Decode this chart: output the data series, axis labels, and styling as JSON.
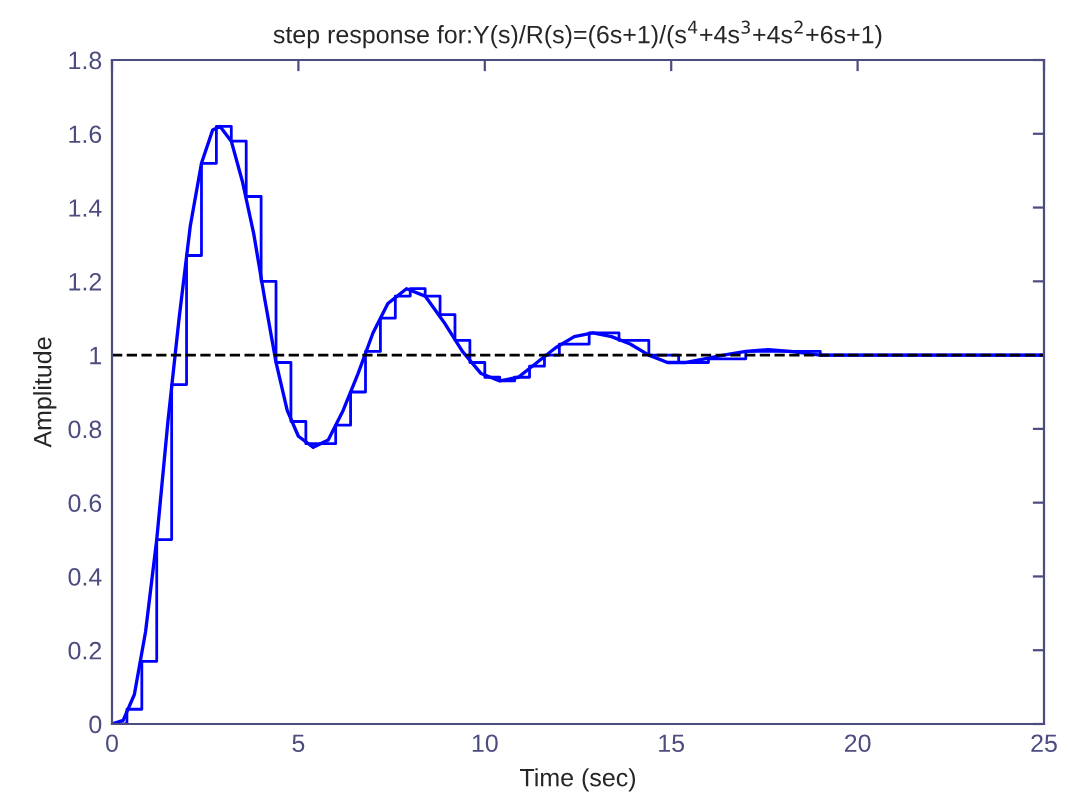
{
  "chart_data": {
    "type": "line",
    "title": "step response for:Y(s)/R(s)=(6s+1)/(s$^{4}$+4s$^{3}$+4s$^{2}$+6s+1)",
    "xlabel": "Time (sec)",
    "ylabel": "Amplitude",
    "xlim": [
      0,
      25
    ],
    "xticks": [
      0,
      5,
      10,
      15,
      20,
      25
    ],
    "ylim": [
      0,
      1.8
    ],
    "yticks": [
      0,
      0.2,
      0.4,
      0.6,
      0.8,
      1,
      1.2,
      1.4,
      1.6,
      1.8
    ],
    "grid": false,
    "legend": false,
    "series": [
      {
        "color": "#0000ff",
        "x": [
          0,
          0.3,
          0.6,
          0.9,
          1.2,
          1.5,
          1.8,
          2.1,
          2.4,
          2.7,
          2.9,
          3.2,
          3.5,
          3.8,
          4.1,
          4.4,
          4.7,
          5.0,
          5.4,
          5.8,
          6.2,
          6.6,
          7.0,
          7.4,
          7.9,
          8.4,
          8.9,
          9.4,
          9.9,
          10.4,
          10.9,
          11.4,
          11.9,
          12.4,
          12.9,
          13.4,
          13.9,
          14.4,
          14.9,
          15.4,
          15.9,
          16.4,
          17.0,
          17.6,
          18.2,
          19.0,
          20,
          22,
          25
        ],
        "values": [
          0,
          0.01,
          0.08,
          0.25,
          0.5,
          0.82,
          1.1,
          1.35,
          1.52,
          1.61,
          1.62,
          1.58,
          1.47,
          1.33,
          1.15,
          0.98,
          0.85,
          0.78,
          0.75,
          0.77,
          0.85,
          0.95,
          1.06,
          1.14,
          1.18,
          1.16,
          1.09,
          1.01,
          0.95,
          0.93,
          0.94,
          0.98,
          1.02,
          1.05,
          1.06,
          1.05,
          1.03,
          1.0,
          0.98,
          0.98,
          0.99,
          1.0,
          1.01,
          1.015,
          1.01,
          1.0,
          1.0,
          1.0,
          1.0
        ]
      },
      {
        "type": "step",
        "color": "#0000ff",
        "x": [
          0,
          0.4,
          0.8,
          1.2,
          1.6,
          2.0,
          2.4,
          2.8,
          3.2,
          3.6,
          4.0,
          4.4,
          4.8,
          5.2,
          5.6,
          6.0,
          6.4,
          6.8,
          7.2,
          7.6,
          8.0,
          8.4,
          8.8,
          9.2,
          9.6,
          10.0,
          10.4,
          10.8,
          11.2,
          11.6,
          12.0,
          12.8,
          13.6,
          14.4,
          15.2,
          16.0,
          17.0,
          18.0,
          19.0,
          20.0,
          25.0
        ],
        "values": [
          0,
          0.04,
          0.17,
          0.5,
          0.92,
          1.27,
          1.52,
          1.62,
          1.58,
          1.43,
          1.2,
          0.98,
          0.82,
          0.76,
          0.76,
          0.81,
          0.9,
          1.01,
          1.1,
          1.16,
          1.18,
          1.16,
          1.11,
          1.04,
          0.98,
          0.94,
          0.93,
          0.94,
          0.97,
          1.0,
          1.03,
          1.06,
          1.04,
          1.0,
          0.98,
          0.99,
          1.01,
          1.01,
          1.0,
          1.0,
          1.0
        ]
      }
    ],
    "ref_lines": [
      {
        "axis": "y",
        "value": 1,
        "color": "#000000",
        "line_style": "dashed"
      }
    ]
  }
}
